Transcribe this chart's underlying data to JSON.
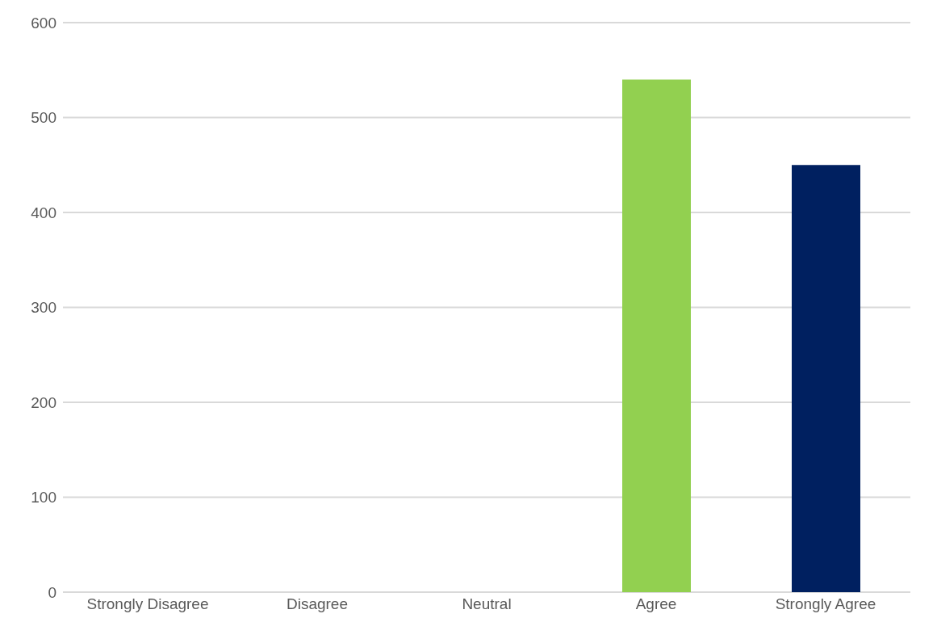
{
  "chart_data": {
    "type": "bar",
    "categories": [
      "Strongly Disagree",
      "Disagree",
      "Neutral",
      "Agree",
      "Strongly Agree"
    ],
    "values": [
      0,
      0,
      0,
      540,
      450
    ],
    "colors": [
      "#c00000",
      "#bf9000",
      "#0085bf",
      "#92d050",
      "#002060"
    ],
    "ylim": [
      0,
      600
    ],
    "yticks": [
      0,
      100,
      200,
      300,
      400,
      500,
      600
    ],
    "grid": "y",
    "legend": false
  }
}
